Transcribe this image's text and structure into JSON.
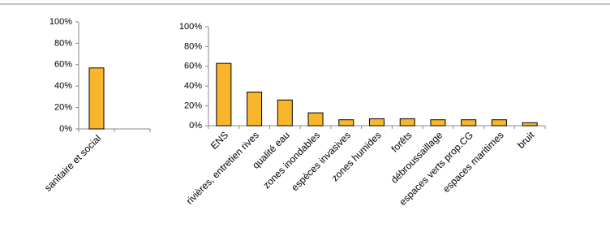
{
  "chart_data": [
    {
      "type": "bar",
      "categories": [
        "sanitaire et social",
        null
      ],
      "values": [
        57,
        null
      ],
      "color": "#f9b52b",
      "ylim": [
        0,
        100
      ],
      "yticks": [
        {
          "value": 0,
          "label": "0%"
        },
        {
          "value": 20,
          "label": "20%"
        },
        {
          "value": 40,
          "label": "40%"
        },
        {
          "value": 60,
          "label": "60%"
        },
        {
          "value": 80,
          "label": "80%"
        },
        {
          "value": 100,
          "label": "100%"
        }
      ]
    },
    {
      "type": "bar",
      "categories": [
        "ENS",
        "rivières, entretien rives",
        "qualité eau",
        "zones inondables",
        "espèces invasives",
        "zones humides",
        "forêts",
        "débroussaillage",
        "espaces verts prop.CG",
        "espaces maritimes",
        "bruit"
      ],
      "values": [
        63,
        34,
        26,
        13,
        6,
        7,
        7,
        6,
        6,
        6,
        3
      ],
      "color": "#f9b52b",
      "ylim": [
        0,
        100
      ],
      "yticks": [
        {
          "value": 0,
          "label": "0%"
        },
        {
          "value": 20,
          "label": "20%"
        },
        {
          "value": 40,
          "label": "40%"
        },
        {
          "value": 60,
          "label": "60%"
        },
        {
          "value": 80,
          "label": "80%"
        },
        {
          "value": 100,
          "label": "100%"
        }
      ]
    }
  ]
}
